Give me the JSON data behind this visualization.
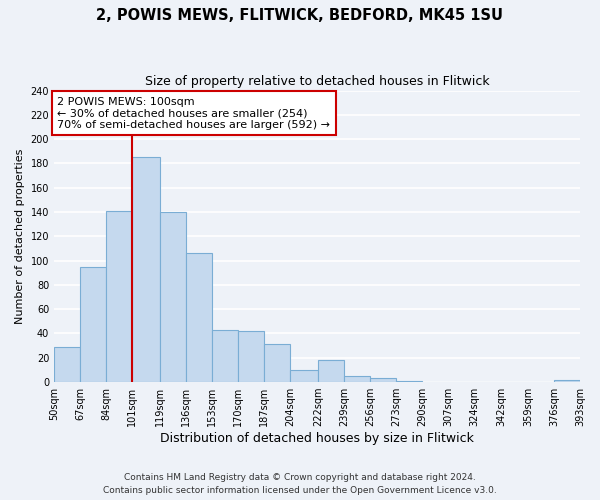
{
  "title": "2, POWIS MEWS, FLITWICK, BEDFORD, MK45 1SU",
  "subtitle": "Size of property relative to detached houses in Flitwick",
  "xlabel": "Distribution of detached houses by size in Flitwick",
  "ylabel": "Number of detached properties",
  "bar_edges": [
    50,
    67,
    84,
    101,
    119,
    136,
    153,
    170,
    187,
    204,
    222,
    239,
    256,
    273,
    290,
    307,
    324,
    342,
    359,
    376,
    393
  ],
  "bar_heights": [
    29,
    95,
    141,
    185,
    140,
    106,
    43,
    42,
    31,
    10,
    18,
    5,
    3,
    1,
    0,
    0,
    0,
    0,
    0,
    2
  ],
  "bar_color": "#c5d9ee",
  "bar_edge_color": "#7aadd4",
  "vline_x": 101,
  "vline_color": "#cc0000",
  "annotation_text": "2 POWIS MEWS: 100sqm\n← 30% of detached houses are smaller (254)\n70% of semi-detached houses are larger (592) →",
  "annotation_box_facecolor": "#ffffff",
  "annotation_box_edgecolor": "#cc0000",
  "ylim": [
    0,
    240
  ],
  "yticks": [
    0,
    20,
    40,
    60,
    80,
    100,
    120,
    140,
    160,
    180,
    200,
    220,
    240
  ],
  "tick_labels": [
    "50sqm",
    "67sqm",
    "84sqm",
    "101sqm",
    "119sqm",
    "136sqm",
    "153sqm",
    "170sqm",
    "187sqm",
    "204sqm",
    "222sqm",
    "239sqm",
    "256sqm",
    "273sqm",
    "290sqm",
    "307sqm",
    "324sqm",
    "342sqm",
    "359sqm",
    "376sqm",
    "393sqm"
  ],
  "footer_line1": "Contains HM Land Registry data © Crown copyright and database right 2024.",
  "footer_line2": "Contains public sector information licensed under the Open Government Licence v3.0.",
  "bg_color": "#eef2f8",
  "grid_color": "#ffffff",
  "title_fontsize": 10.5,
  "subtitle_fontsize": 9,
  "xlabel_fontsize": 9,
  "ylabel_fontsize": 8,
  "tick_fontsize": 7,
  "annotation_fontsize": 8,
  "footer_fontsize": 6.5
}
